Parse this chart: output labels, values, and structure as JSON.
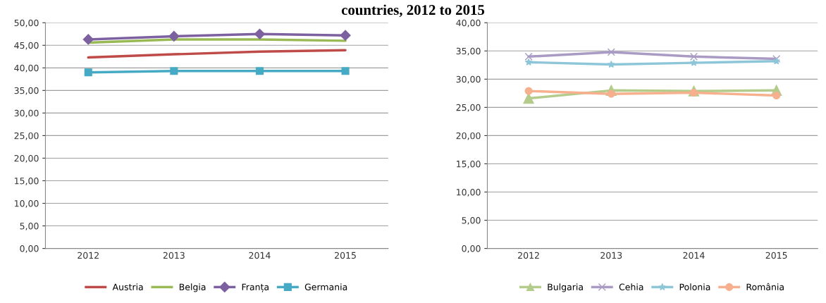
{
  "chart_data": [
    {
      "type": "line",
      "title": "countries, 2012 to 2015",
      "categories": [
        "2012",
        "2013",
        "2014",
        "2015"
      ],
      "series": [
        {
          "name": "Austria",
          "color": "#be4b48",
          "marker": "none",
          "values": [
            42.3,
            43.0,
            43.6,
            43.9
          ]
        },
        {
          "name": "Belgia",
          "color": "#98b954",
          "marker": "none",
          "values": [
            45.6,
            46.3,
            46.3,
            46.0
          ]
        },
        {
          "name": "Franța",
          "color": "#7d60a0",
          "marker": "diamond",
          "values": [
            46.3,
            47.0,
            47.5,
            47.2
          ]
        },
        {
          "name": "Germania",
          "color": "#46aac5",
          "marker": "square",
          "values": [
            39.0,
            39.3,
            39.3,
            39.3
          ]
        }
      ],
      "ylim": [
        0,
        50
      ],
      "yticks": [
        {
          "value": 0,
          "label": "0,00"
        },
        {
          "value": 5,
          "label": "5,00"
        },
        {
          "value": 10,
          "label": "10,00"
        },
        {
          "value": 15,
          "label": "15,00"
        },
        {
          "value": 20,
          "label": "20,00"
        },
        {
          "value": 25,
          "label": "25,00"
        },
        {
          "value": 30,
          "label": "30,00"
        },
        {
          "value": 35,
          "label": "35,00"
        },
        {
          "value": 40,
          "label": "40,00"
        },
        {
          "value": 45,
          "label": "45,00"
        },
        {
          "value": 50,
          "label": "50,00"
        }
      ],
      "grid": "y",
      "legend": "bottom"
    },
    {
      "type": "line",
      "categories": [
        "2012",
        "2013",
        "2014",
        "2015"
      ],
      "series": [
        {
          "name": "Bulgaria",
          "color": "#b3cc8c",
          "marker": "triangle",
          "values": [
            26.6,
            28.0,
            27.9,
            28.0
          ]
        },
        {
          "name": "Cehia",
          "color": "#a99bc4",
          "marker": "cross",
          "values": [
            34.0,
            34.8,
            34.0,
            33.6
          ]
        },
        {
          "name": "Polonia",
          "color": "#8ec6d9",
          "marker": "star",
          "values": [
            33.0,
            32.6,
            32.9,
            33.2
          ]
        },
        {
          "name": "România",
          "color": "#f6b08e",
          "marker": "circle",
          "values": [
            27.9,
            27.4,
            27.6,
            27.1
          ]
        }
      ],
      "ylim": [
        0,
        40
      ],
      "yticks": [
        {
          "value": 0,
          "label": "0,00"
        },
        {
          "value": 5,
          "label": "5,00"
        },
        {
          "value": 10,
          "label": "10,00"
        },
        {
          "value": 15,
          "label": "15,00"
        },
        {
          "value": 20,
          "label": "20,00"
        },
        {
          "value": 25,
          "label": "25,00"
        },
        {
          "value": 30,
          "label": "30,00"
        },
        {
          "value": 35,
          "label": "35,00"
        },
        {
          "value": 40,
          "label": "40,00"
        }
      ],
      "grid": "y",
      "legend": "bottom"
    }
  ]
}
